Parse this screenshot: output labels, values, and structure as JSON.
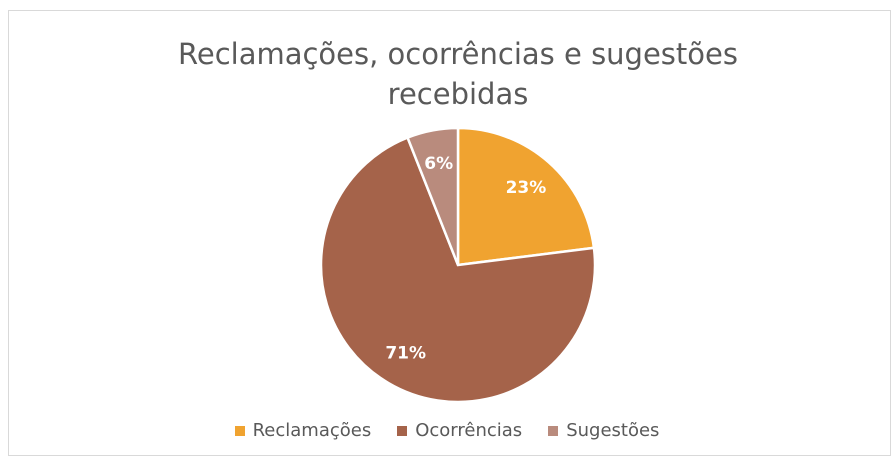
{
  "chart_data": {
    "type": "pie",
    "title": "Reclamações, ocorrências e sugestões recebidas",
    "categories": [
      "Reclamações",
      "Ocorrências",
      "Sugestões"
    ],
    "values": [
      23,
      71,
      6
    ],
    "value_labels": [
      "23%",
      "71%",
      "6%"
    ],
    "colors": [
      "#f0a330",
      "#a5634a",
      "#b98b7d"
    ],
    "legend": "bottom"
  }
}
